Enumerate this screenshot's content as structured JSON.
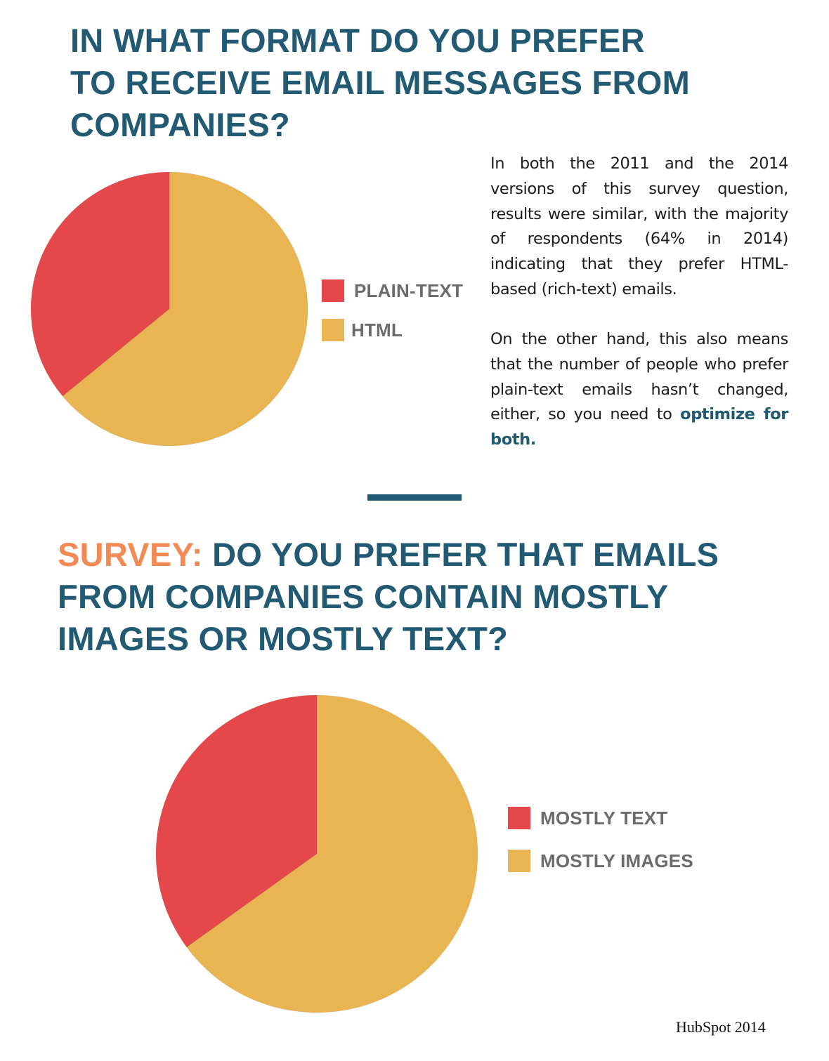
{
  "colors": {
    "title": "#215a72",
    "prefix": "#f38a55",
    "plain_text": "#e5484a",
    "html": "#e9b552",
    "legend_text": "#6b6b6b",
    "divider": "#215a72"
  },
  "section1": {
    "title_lines": [
      "IN WHAT FORMAT DO YOU PREFER",
      "TO RECEIVE EMAIL MESSAGES FROM",
      "COMPANIES?"
    ],
    "paragraph1": "In both the 2011 and the 2014 versions of this survey question, results were similar, with the majority of respondents (64% in 2014) indicating that they prefer HTML-based (rich-text) emails.",
    "paragraph2_text": "On the other hand, this also means that the number of people who prefer plain-text emails hasn’t changed, either, so you need to ",
    "paragraph2_highlight": "optimize for both."
  },
  "section2": {
    "title_prefix": "SURVEY:",
    "title_lines": [
      "DO YOU PREFER THAT EMAILS",
      "FROM COMPANIES CONTAIN MOSTLY",
      "IMAGES OR MOSTLY TEXT?"
    ]
  },
  "source": "HubSpot 2014",
  "chart_data": [
    {
      "type": "pie",
      "title": "IN WHAT FORMAT DO YOU PREFER TO RECEIVE EMAIL MESSAGES FROM COMPANIES?",
      "legend_position": "right",
      "slices": [
        {
          "label": "PLAIN-TEXT",
          "value": 36,
          "color": "#e5484a"
        },
        {
          "label": "HTML",
          "value": 64,
          "color": "#e9b552"
        }
      ]
    },
    {
      "type": "pie",
      "title": "SURVEY: DO YOU PREFER THAT EMAILS FROM COMPANIES CONTAIN MOSTLY IMAGES OR MOSTLY TEXT?",
      "legend_position": "right",
      "slices": [
        {
          "label": "MOSTLY TEXT",
          "value": 35,
          "color": "#e5484a"
        },
        {
          "label": "MOSTLY IMAGES",
          "value": 65,
          "color": "#e9b552"
        }
      ]
    }
  ]
}
